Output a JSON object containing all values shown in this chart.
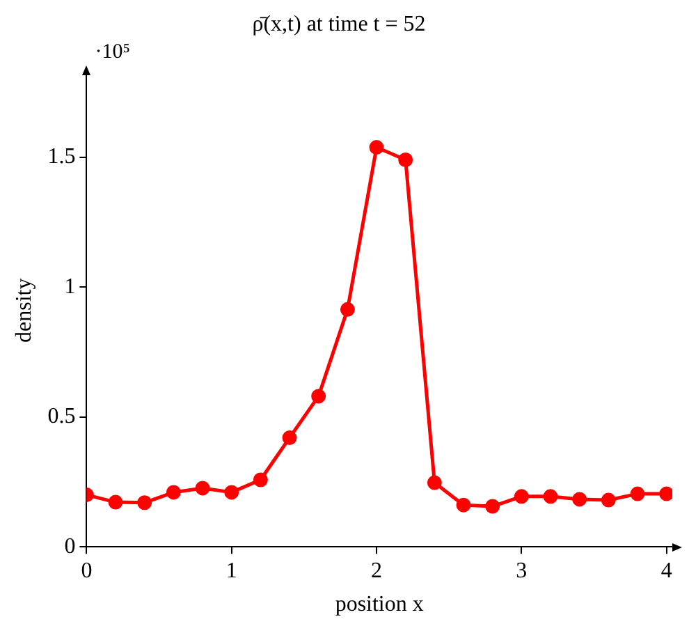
{
  "chart_data": {
    "type": "line",
    "title": "ρ̄(x,t) at time t = 52",
    "xlabel": "position x",
    "ylabel": "density",
    "annotations": [
      "·10⁵"
    ],
    "x": [
      0,
      0.2,
      0.4,
      0.6,
      0.8,
      1.0,
      1.2,
      1.4,
      1.6,
      1.8,
      2.0,
      2.2,
      2.4,
      2.6,
      2.8,
      3.0,
      3.2,
      3.4,
      3.6,
      3.8,
      4.0
    ],
    "series": [
      {
        "color": "#ff0000",
        "values": [
          0.2,
          0.172,
          0.17,
          0.21,
          0.226,
          0.21,
          0.258,
          0.42,
          0.58,
          0.914,
          1.538,
          1.49,
          0.247,
          0.161,
          0.156,
          0.194,
          0.194,
          0.183,
          0.18,
          0.204,
          0.204
        ]
      }
    ],
    "xlim": [
      0,
      4.04
    ],
    "xticks": [
      0,
      1,
      2,
      3,
      4
    ],
    "ylim": [
      0,
      1.82
    ],
    "yticks": [
      0,
      0.5,
      1,
      1.5
    ],
    "grid": false,
    "legend": false,
    "marker": "circle",
    "line_style": "solid"
  }
}
